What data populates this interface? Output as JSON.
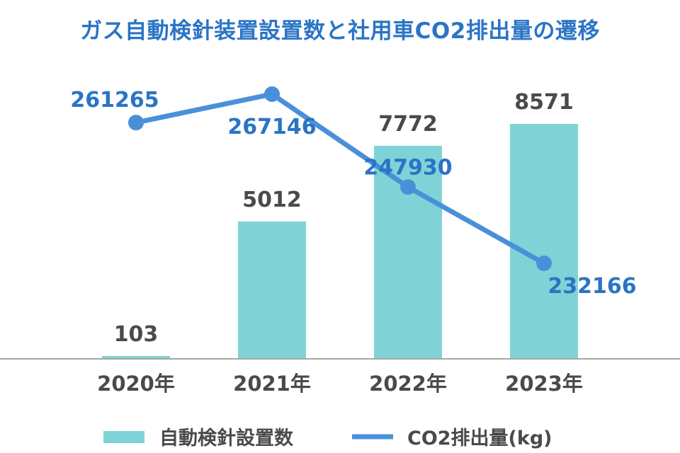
{
  "chart_data": {
    "type": "bar+line",
    "title": "ガス自動検針装置設置数と社用車CO2排出量の遷移",
    "categories": [
      "2020年",
      "2021年",
      "2022年",
      "2023年"
    ],
    "series": [
      {
        "name": "自動検針設置数",
        "type": "bar",
        "values": [
          103,
          5012,
          7772,
          8571
        ],
        "color": "#7fd3d6"
      },
      {
        "name": "CO2排出量(kg)",
        "type": "line",
        "values": [
          261265,
          267146,
          247930,
          232166
        ],
        "color": "#4a90d9"
      }
    ],
    "bar_ylim": [
      0,
      10000
    ],
    "line_ylim": [
      200000,
      275000
    ],
    "grid": false,
    "legend_position": "bottom",
    "title_color": "#2a74c6",
    "line_label_color": "#2a74c6",
    "text_color": "#4a4a4a",
    "axis_color": "#a6a6a6"
  }
}
